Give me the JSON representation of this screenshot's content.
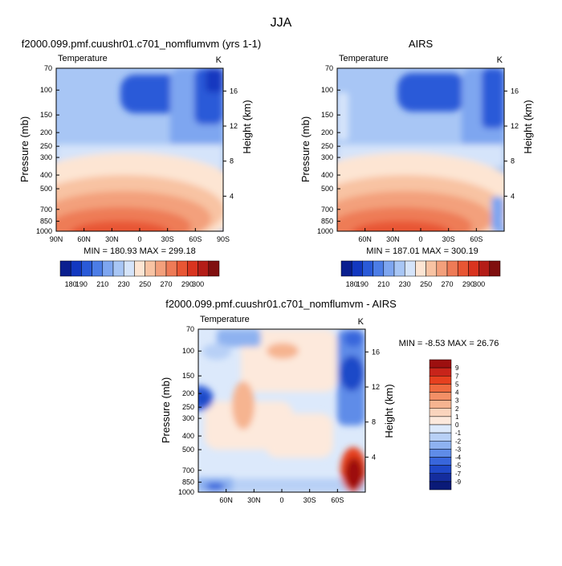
{
  "figure": {
    "season": "JJA"
  },
  "chart_data": [
    {
      "type": "heatmap",
      "title": "f2000.099.pmf.cuushr01.c701_nomflumvm (yrs 1-1)",
      "subtitle_left": "Temperature",
      "units": "K",
      "ylabel": "Pressure (mb)",
      "ylabel_right": "Height (km)",
      "x_ticks": [
        "90N",
        "60N",
        "30N",
        "0",
        "30S",
        "60S",
        "90S"
      ],
      "x_values": [
        90,
        60,
        30,
        0,
        -30,
        -60,
        -90
      ],
      "y_ticks": [
        "70",
        "100",
        "150",
        "200",
        "250",
        "300",
        "400",
        "500",
        "700",
        "850",
        "1000"
      ],
      "y_values": [
        70,
        100,
        150,
        200,
        250,
        300,
        400,
        500,
        700,
        850,
        1000
      ],
      "height_ticks": [
        "16",
        "12",
        "8",
        "4"
      ],
      "height_values": [
        16,
        12,
        8,
        4
      ],
      "stats": "MIN = 180.93   MAX = 299.18",
      "min": 180.93,
      "max": 299.18
    },
    {
      "type": "heatmap",
      "title": "AIRS",
      "subtitle_left": "Temperature",
      "units": "K",
      "ylabel": "Pressure (mb)",
      "ylabel_right": "Height (km)",
      "x_ticks": [
        "60N",
        "30N",
        "0",
        "30S",
        "60S"
      ],
      "x_values": [
        60,
        30,
        0,
        -30,
        -60
      ],
      "y_ticks": [
        "70",
        "100",
        "150",
        "200",
        "250",
        "300",
        "400",
        "500",
        "700",
        "850",
        "1000"
      ],
      "y_values": [
        70,
        100,
        150,
        200,
        250,
        300,
        400,
        500,
        700,
        850,
        1000
      ],
      "height_ticks": [
        "16",
        "12",
        "8",
        "4"
      ],
      "height_values": [
        16,
        12,
        8,
        4
      ],
      "stats": "MIN = 187.01   MAX = 300.19",
      "min": 187.01,
      "max": 300.19
    },
    {
      "type": "heatmap",
      "title": "f2000.099.pmf.cuushr01.c701_nomflumvm - AIRS",
      "subtitle_left": "Temperature",
      "units": "K",
      "ylabel": "Pressure (mb)",
      "ylabel_right": "Height (km)",
      "x_ticks": [
        "60N",
        "30N",
        "0",
        "30S",
        "60S"
      ],
      "x_values": [
        60,
        30,
        0,
        -30,
        -60
      ],
      "y_ticks": [
        "70",
        "100",
        "150",
        "200",
        "250",
        "300",
        "400",
        "500",
        "700",
        "850",
        "1000"
      ],
      "y_values": [
        70,
        100,
        150,
        200,
        250,
        300,
        400,
        500,
        700,
        850,
        1000
      ],
      "height_ticks": [
        "16",
        "12",
        "8",
        "4"
      ],
      "height_values": [
        16,
        12,
        8,
        4
      ],
      "stats": "MIN =   -8.53   MAX =  26.76",
      "min": -8.53,
      "max": 26.76
    }
  ],
  "colorbar_temperature": {
    "labels": [
      "180",
      "190",
      "210",
      "230",
      "250",
      "270",
      "290",
      "300"
    ],
    "colors": [
      "#0a1f8f",
      "#1238c0",
      "#2a5ad8",
      "#4c7de6",
      "#7ea6f0",
      "#a8c6f5",
      "#d5e4fa",
      "#fde5d3",
      "#f8c3a3",
      "#f3a07c",
      "#ee7b57",
      "#e85634",
      "#d9341f",
      "#b41d17",
      "#800f0f"
    ]
  },
  "colorbar_difference": {
    "labels": [
      "9",
      "7",
      "5",
      "4",
      "3",
      "2",
      "1",
      "0",
      "-1",
      "-2",
      "-3",
      "-4",
      "-5",
      "-7",
      "-9"
    ],
    "colors": [
      "#9d0f0f",
      "#c8241a",
      "#e6401f",
      "#ef6a3f",
      "#f38f66",
      "#f6b490",
      "#fad4bd",
      "#fde9dc",
      "#dce9fb",
      "#b8d0f6",
      "#8eb2f0",
      "#5f8ce8",
      "#3866dc",
      "#1f48c8",
      "#142d9e",
      "#0a1a78"
    ]
  }
}
